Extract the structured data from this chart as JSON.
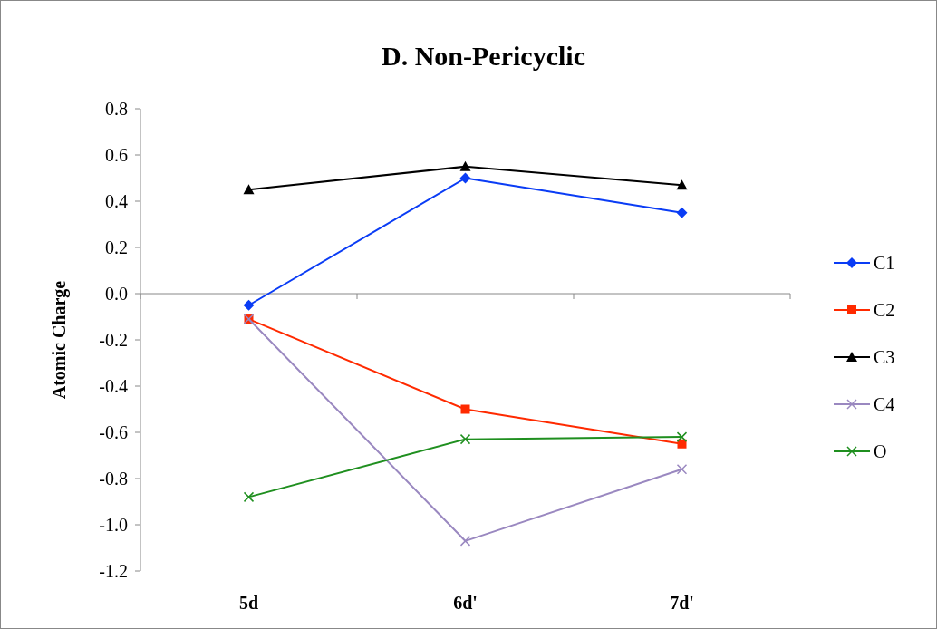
{
  "chart_data": {
    "type": "line",
    "title": "D. Non-Pericyclic",
    "ylabel": "Atomic Charge",
    "categories": [
      "5d",
      "6d'",
      "7d'"
    ],
    "series": [
      {
        "name": "C1",
        "color": "#0a3cf5",
        "marker": "diamond",
        "values": [
          -0.05,
          0.5,
          0.35
        ]
      },
      {
        "name": "C2",
        "color": "#ff2a00",
        "marker": "square",
        "values": [
          -0.11,
          -0.5,
          -0.65
        ]
      },
      {
        "name": "C3",
        "color": "#000000",
        "marker": "triangle",
        "values": [
          0.45,
          0.55,
          0.47
        ]
      },
      {
        "name": "C4",
        "color": "#9a88c0",
        "marker": "cross",
        "values": [
          -0.11,
          -1.07,
          -0.76
        ]
      },
      {
        "name": "O",
        "color": "#1f8f1f",
        "marker": "cross",
        "values": [
          -0.88,
          -0.63,
          -0.62
        ]
      }
    ],
    "ylim": [
      -1.2,
      0.8
    ],
    "yticks": [
      {
        "value": 0.8,
        "label": "0.8"
      },
      {
        "value": 0.6,
        "label": "0.6"
      },
      {
        "value": 0.4,
        "label": "0.4"
      },
      {
        "value": 0.2,
        "label": "0.2"
      },
      {
        "value": 0,
        "label": "0.0"
      },
      {
        "value": -0.2,
        "label": "-0.2"
      },
      {
        "value": -0.4,
        "label": "-0.4"
      },
      {
        "value": -0.6,
        "label": "-0.6"
      },
      {
        "value": -0.8,
        "label": "-0.8"
      },
      {
        "value": -1,
        "label": "-1.0"
      },
      {
        "value": -1.2,
        "label": "-1.2"
      }
    ],
    "legend": "right"
  }
}
